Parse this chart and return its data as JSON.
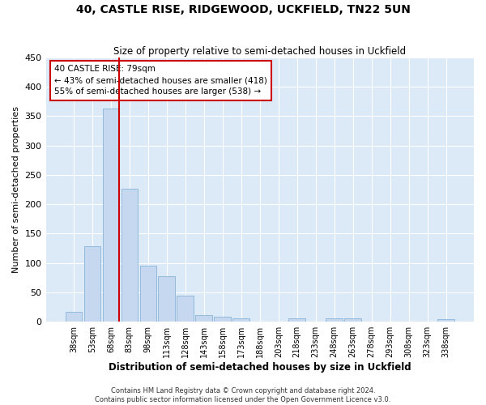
{
  "title": "40, CASTLE RISE, RIDGEWOOD, UCKFIELD, TN22 5UN",
  "subtitle": "Size of property relative to semi-detached houses in Uckfield",
  "xlabel": "Distribution of semi-detached houses by size in Uckfield",
  "ylabel": "Number of semi-detached properties",
  "bar_color": "#c5d8f0",
  "bar_edge_color": "#8ab4d8",
  "background_color": "#dce9f7",
  "grid_color": "#ffffff",
  "annotation_text": "40 CASTLE RISE: 79sqm\n← 43% of semi-detached houses are smaller (418)\n55% of semi-detached houses are larger (538) →",
  "subject_bin_index": 2,
  "vline_color": "#cc0000",
  "categories": [
    "38sqm",
    "53sqm",
    "68sqm",
    "83sqm",
    "98sqm",
    "113sqm",
    "128sqm",
    "143sqm",
    "158sqm",
    "173sqm",
    "188sqm",
    "203sqm",
    "218sqm",
    "233sqm",
    "248sqm",
    "263sqm",
    "278sqm",
    "293sqm",
    "308sqm",
    "323sqm",
    "338sqm"
  ],
  "values": [
    17,
    128,
    363,
    226,
    95,
    78,
    45,
    12,
    8,
    6,
    0,
    0,
    6,
    0,
    6,
    6,
    0,
    0,
    0,
    0,
    5
  ],
  "ylim": [
    0,
    450
  ],
  "yticks": [
    0,
    50,
    100,
    150,
    200,
    250,
    300,
    350,
    400,
    450
  ],
  "footnote": "Contains HM Land Registry data © Crown copyright and database right 2024.\nContains public sector information licensed under the Open Government Licence v3.0.",
  "figsize": [
    6.0,
    5.0
  ],
  "dpi": 100
}
